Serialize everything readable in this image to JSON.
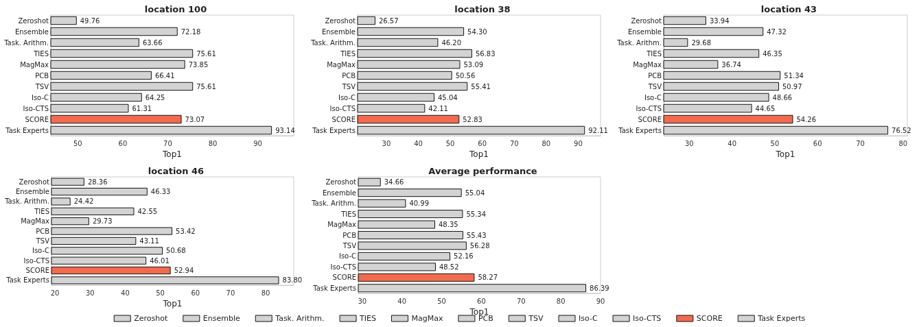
{
  "chart_data": [
    {
      "type": "bar",
      "orientation": "horizontal",
      "title": "location 100",
      "xlabel": "Top1",
      "categories": [
        "Zeroshot",
        "Ensemble",
        "Task. Arithm.",
        "TIES",
        "MagMax",
        "PCB",
        "TSV",
        "Iso-C",
        "Iso-CTS",
        "SCORE",
        "Task Experts"
      ],
      "values": [
        49.76,
        72.18,
        63.66,
        75.61,
        73.85,
        66.41,
        75.61,
        64.25,
        61.31,
        73.07,
        93.14
      ],
      "value_labels": [
        "49.76",
        "72.18",
        "63.66",
        "75.61",
        "73.85",
        "66.41",
        "75.61",
        "64.25",
        "61.31",
        "73.07",
        "93.14"
      ],
      "colors": [
        "#d3d3d3",
        "#d3d3d3",
        "#d3d3d3",
        "#d3d3d3",
        "#d3d3d3",
        "#d3d3d3",
        "#d3d3d3",
        "#d3d3d3",
        "#d3d3d3",
        "#f26b50",
        "#d3d3d3"
      ],
      "xlim": [
        44,
        98
      ],
      "xticks": [
        50,
        60,
        70,
        80,
        90
      ],
      "grid": false,
      "legend": false
    },
    {
      "type": "bar",
      "orientation": "horizontal",
      "title": "location 38",
      "xlabel": "Top1",
      "categories": [
        "Zeroshot",
        "Ensemble",
        "Task. Arithm.",
        "TIES",
        "MagMax",
        "PCB",
        "TSV",
        "Iso-C",
        "Iso-CTS",
        "SCORE",
        "Task Experts"
      ],
      "values": [
        26.57,
        54.3,
        46.2,
        56.83,
        53.09,
        50.56,
        55.41,
        45.04,
        42.11,
        52.83,
        92.11
      ],
      "value_labels": [
        "26.57",
        "54.30",
        "46.20",
        "56.83",
        "53.09",
        "50.56",
        "55.41",
        "45.04",
        "42.11",
        "52.83",
        "92.11"
      ],
      "colors": [
        "#d3d3d3",
        "#d3d3d3",
        "#d3d3d3",
        "#d3d3d3",
        "#d3d3d3",
        "#d3d3d3",
        "#d3d3d3",
        "#d3d3d3",
        "#d3d3d3",
        "#f26b50",
        "#d3d3d3"
      ],
      "xlim": [
        21,
        97
      ],
      "xticks": [
        30,
        40,
        50,
        60,
        70,
        80,
        90
      ],
      "grid": false,
      "legend": false
    },
    {
      "type": "bar",
      "orientation": "horizontal",
      "title": "location 43",
      "xlabel": "Top1",
      "categories": [
        "Zeroshot",
        "Ensemble",
        "Task. Arithm.",
        "TIES",
        "MagMax",
        "PCB",
        "TSV",
        "Iso-C",
        "Iso-CTS",
        "SCORE",
        "Task Experts"
      ],
      "values": [
        33.94,
        47.32,
        29.68,
        46.35,
        36.74,
        51.34,
        50.97,
        48.66,
        44.65,
        54.26,
        76.52
      ],
      "value_labels": [
        "33.94",
        "47.32",
        "29.68",
        "46.35",
        "36.74",
        "51.34",
        "50.97",
        "48.66",
        "44.65",
        "54.26",
        "76.52"
      ],
      "colors": [
        "#d3d3d3",
        "#d3d3d3",
        "#d3d3d3",
        "#d3d3d3",
        "#d3d3d3",
        "#d3d3d3",
        "#d3d3d3",
        "#d3d3d3",
        "#d3d3d3",
        "#f26b50",
        "#d3d3d3"
      ],
      "xlim": [
        24,
        81
      ],
      "xticks": [
        30,
        40,
        50,
        60,
        70,
        80
      ],
      "grid": false,
      "legend": false
    },
    {
      "type": "bar",
      "orientation": "horizontal",
      "title": "location 46",
      "xlabel": "Top1",
      "categories": [
        "Zeroshot",
        "Ensemble",
        "Task. Arithm.",
        "TIES",
        "MagMax",
        "PCB",
        "TSV",
        "Iso-C",
        "Iso-CTS",
        "SCORE",
        "Task Experts"
      ],
      "values": [
        28.36,
        46.33,
        24.42,
        42.55,
        29.73,
        53.42,
        43.11,
        50.68,
        46.01,
        52.94,
        83.8
      ],
      "value_labels": [
        "28.36",
        "46.33",
        "24.42",
        "42.55",
        "29.73",
        "53.42",
        "43.11",
        "50.68",
        "46.01",
        "52.94",
        "83.80"
      ],
      "colors": [
        "#d3d3d3",
        "#d3d3d3",
        "#d3d3d3",
        "#d3d3d3",
        "#d3d3d3",
        "#d3d3d3",
        "#d3d3d3",
        "#d3d3d3",
        "#d3d3d3",
        "#f26b50",
        "#d3d3d3"
      ],
      "xlim": [
        19,
        88
      ],
      "xticks": [
        20,
        30,
        40,
        50,
        60,
        70,
        80
      ],
      "grid": false,
      "legend": false
    },
    {
      "type": "bar",
      "orientation": "horizontal",
      "stacked": true,
      "title": "Average performance",
      "xlabel": "Top1",
      "categories": [
        "Zeroshot",
        "Ensemble",
        "Task. Arithm.",
        "TIES",
        "MagMax",
        "PCB",
        "TSV",
        "Iso-C",
        "Iso-CTS",
        "SCORE",
        "Task Experts"
      ],
      "series": [
        {
          "name": "Zeroshot",
          "color": "#d3d3d3",
          "values": [
            34.66,
            null,
            null,
            null,
            null,
            null,
            null,
            null,
            null,
            null,
            null
          ],
          "value_labels": [
            "34.66",
            null,
            null,
            null,
            null,
            null,
            null,
            null,
            null,
            null,
            null
          ]
        },
        {
          "name": "Ensemble",
          "color": "#d3d3d3",
          "values": [
            null,
            55.04,
            null,
            null,
            null,
            null,
            null,
            null,
            null,
            null,
            null
          ],
          "value_labels": [
            null,
            "55.04",
            null,
            null,
            null,
            null,
            null,
            null,
            null,
            null,
            null
          ]
        },
        {
          "name": "Task. Arithm.",
          "color": "#d3d3d3",
          "values": [
            null,
            null,
            40.99,
            null,
            null,
            null,
            null,
            null,
            null,
            null,
            null
          ],
          "value_labels": [
            null,
            null,
            "40.99",
            null,
            null,
            null,
            null,
            null,
            null,
            null,
            null
          ]
        },
        {
          "name": "TIES",
          "color": "#d3d3d3",
          "values": [
            null,
            null,
            null,
            55.34,
            null,
            null,
            null,
            null,
            null,
            null,
            null
          ],
          "value_labels": [
            null,
            null,
            null,
            "55.34",
            null,
            null,
            null,
            null,
            null,
            null,
            null
          ]
        },
        {
          "name": "MagMax",
          "color": "#d3d3d3",
          "values": [
            null,
            null,
            null,
            null,
            48.35,
            null,
            null,
            null,
            null,
            null,
            null
          ],
          "value_labels": [
            null,
            null,
            null,
            null,
            "48.35",
            null,
            null,
            null,
            null,
            null,
            null
          ]
        },
        {
          "name": "PCB",
          "color": "#d3d3d3",
          "values": [
            null,
            null,
            null,
            null,
            null,
            55.43,
            null,
            null,
            null,
            null,
            null
          ],
          "value_labels": [
            null,
            null,
            null,
            null,
            null,
            "55.43",
            null,
            null,
            null,
            null,
            null
          ]
        },
        {
          "name": "TSV",
          "color": "#d3d3d3",
          "values": [
            null,
            null,
            null,
            null,
            null,
            null,
            56.28,
            null,
            null,
            null,
            null
          ],
          "value_labels": [
            null,
            null,
            null,
            null,
            null,
            null,
            "56.28",
            null,
            null,
            null,
            null
          ]
        },
        {
          "name": "Iso-C",
          "color": "#d3d3d3",
          "values": [
            null,
            null,
            null,
            null,
            null,
            null,
            null,
            52.16,
            null,
            null,
            null
          ],
          "value_labels": [
            null,
            null,
            null,
            null,
            null,
            null,
            null,
            "52.16",
            null,
            null,
            null
          ]
        },
        {
          "name": "Iso-CTS",
          "color": "#d3d3d3",
          "values": [
            null,
            null,
            null,
            null,
            null,
            null,
            null,
            null,
            48.52,
            null,
            null
          ],
          "value_labels": [
            null,
            null,
            null,
            null,
            null,
            null,
            null,
            null,
            "48.52",
            null,
            null
          ]
        },
        {
          "name": "SCORE",
          "color": "#f26b50",
          "values": [
            null,
            null,
            null,
            null,
            null,
            null,
            null,
            null,
            null,
            58.27,
            null
          ],
          "value_labels": [
            null,
            null,
            null,
            null,
            null,
            null,
            null,
            null,
            null,
            "58.27",
            null
          ]
        },
        {
          "name": "Task Experts",
          "color": "#d3d3d3",
          "values": [
            null,
            null,
            null,
            null,
            null,
            null,
            null,
            null,
            null,
            null,
            86.39
          ],
          "value_labels": [
            null,
            null,
            null,
            null,
            null,
            null,
            null,
            null,
            null,
            null,
            "86.39"
          ]
        }
      ],
      "xlim": [
        29,
        90
      ],
      "xticks": [
        30,
        40,
        50,
        60,
        70,
        80,
        90
      ],
      "grid": false,
      "legend": "bottom"
    }
  ]
}
